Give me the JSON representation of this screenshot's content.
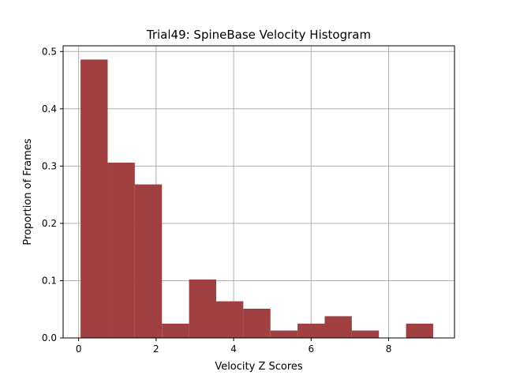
{
  "chart_data": {
    "type": "bar",
    "title": "Trial49: SpineBase Velocity Histogram",
    "xlabel": "Velocity Z Scores",
    "ylabel": "Proportion of Frames",
    "xlim": [
      -0.4,
      9.7
    ],
    "ylim": [
      0,
      0.51
    ],
    "xticks": [
      0,
      2,
      4,
      6,
      8
    ],
    "yticks": [
      0.0,
      0.1,
      0.2,
      0.3,
      0.4,
      0.5
    ],
    "xtick_labels": [
      "0",
      "2",
      "4",
      "6",
      "8"
    ],
    "ytick_labels": [
      "0.0",
      "0.1",
      "0.2",
      "0.3",
      "0.4",
      "0.5"
    ],
    "grid": true,
    "bar_color": "#a04040",
    "bins": [
      {
        "x0": 0.05,
        "x1": 0.75,
        "value": 0.486
      },
      {
        "x0": 0.75,
        "x1": 1.45,
        "value": 0.306
      },
      {
        "x0": 1.45,
        "x1": 2.15,
        "value": 0.268
      },
      {
        "x0": 2.15,
        "x1": 2.85,
        "value": 0.025
      },
      {
        "x0": 2.85,
        "x1": 3.55,
        "value": 0.102
      },
      {
        "x0": 3.55,
        "x1": 4.25,
        "value": 0.064
      },
      {
        "x0": 4.25,
        "x1": 4.95,
        "value": 0.051
      },
      {
        "x0": 4.95,
        "x1": 5.65,
        "value": 0.013
      },
      {
        "x0": 5.65,
        "x1": 6.35,
        "value": 0.025
      },
      {
        "x0": 6.35,
        "x1": 7.05,
        "value": 0.038
      },
      {
        "x0": 7.05,
        "x1": 7.75,
        "value": 0.013
      },
      {
        "x0": 7.75,
        "x1": 8.45,
        "value": 0.0
      },
      {
        "x0": 8.45,
        "x1": 9.15,
        "value": 0.025
      }
    ]
  }
}
